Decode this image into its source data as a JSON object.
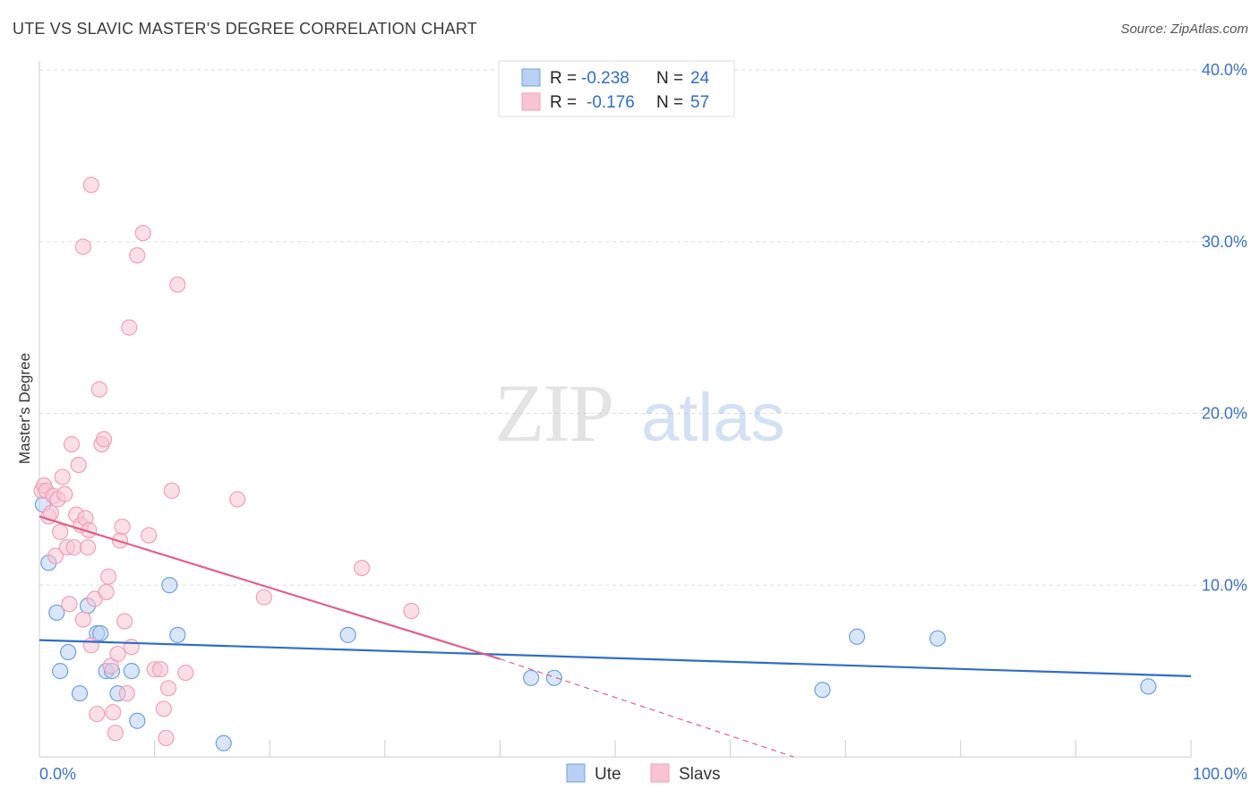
{
  "chart_data": {
    "type": "scatter",
    "title": "UTE VS SLAVIC MASTER'S DEGREE CORRELATION CHART",
    "source": "Source: ZipAtlas.com",
    "xlabel": "",
    "ylabel": "Master's Degree",
    "xlim": [
      0,
      100
    ],
    "ylim": [
      0,
      40
    ],
    "x_tick_labels": [
      "0.0%",
      "100.0%"
    ],
    "y_ticks": [
      10,
      20,
      30,
      40
    ],
    "y_tick_labels": [
      "10.0%",
      "20.0%",
      "30.0%",
      "40.0%"
    ],
    "grid": true,
    "watermark": "ZIPatlas",
    "legend_position": "top-center",
    "series": [
      {
        "name": "Ute",
        "color": "#6fa0e0",
        "fill": "#b8d1f3",
        "line_color": "#2f6ec7",
        "R": "-0.238",
        "N": "24",
        "r_label": "R =",
        "n_label": "N =",
        "trend": {
          "x0": 0,
          "y0": 6.8,
          "x1": 100,
          "y1": 4.7
        },
        "points": [
          [
            0.3,
            14.7
          ],
          [
            0.8,
            11.3
          ],
          [
            1.5,
            8.4
          ],
          [
            1.8,
            5.0
          ],
          [
            2.5,
            6.1
          ],
          [
            3.5,
            3.7
          ],
          [
            4.2,
            8.8
          ],
          [
            5.0,
            7.2
          ],
          [
            5.3,
            7.2
          ],
          [
            5.8,
            5.0
          ],
          [
            6.3,
            5.0
          ],
          [
            6.8,
            3.7
          ],
          [
            8.0,
            5.0
          ],
          [
            8.5,
            2.1
          ],
          [
            11.3,
            10.0
          ],
          [
            12.0,
            7.1
          ],
          [
            16.0,
            0.8
          ],
          [
            26.8,
            7.1
          ],
          [
            42.7,
            4.6
          ],
          [
            44.7,
            4.6
          ],
          [
            68.0,
            3.9
          ],
          [
            71.0,
            7.0
          ],
          [
            78.0,
            6.9
          ],
          [
            96.3,
            4.1
          ]
        ]
      },
      {
        "name": "Slavs",
        "color": "#f0a0b8",
        "fill": "#f8c4d4",
        "line_color": "#e0608c",
        "R": "-0.176",
        "N": "57",
        "r_label": "R =",
        "n_label": "N =",
        "trend": {
          "x0": 0,
          "y0": 14.0,
          "x1": 40,
          "y1": 5.7
        },
        "trend_dashed": {
          "x0": 40,
          "y0": 5.7,
          "x1": 65.5,
          "y1": 0.0
        },
        "points": [
          [
            0.2,
            15.5
          ],
          [
            0.4,
            15.8
          ],
          [
            0.6,
            15.5
          ],
          [
            0.8,
            14.0
          ],
          [
            1.0,
            14.2
          ],
          [
            1.2,
            15.2
          ],
          [
            1.4,
            11.7
          ],
          [
            1.6,
            15.0
          ],
          [
            1.8,
            13.1
          ],
          [
            2.0,
            16.3
          ],
          [
            2.2,
            15.3
          ],
          [
            2.4,
            12.2
          ],
          [
            2.6,
            8.9
          ],
          [
            2.8,
            18.2
          ],
          [
            3.0,
            12.2
          ],
          [
            3.2,
            14.1
          ],
          [
            3.4,
            17.0
          ],
          [
            3.6,
            13.5
          ],
          [
            3.8,
            8.0
          ],
          [
            4.0,
            13.9
          ],
          [
            4.2,
            12.2
          ],
          [
            4.5,
            6.5
          ],
          [
            4.8,
            9.2
          ],
          [
            5.0,
            2.5
          ],
          [
            5.2,
            21.4
          ],
          [
            5.4,
            18.2
          ],
          [
            5.6,
            18.5
          ],
          [
            5.8,
            9.6
          ],
          [
            6.0,
            10.5
          ],
          [
            6.2,
            5.3
          ],
          [
            6.4,
            2.6
          ],
          [
            6.6,
            1.4
          ],
          [
            6.8,
            6.0
          ],
          [
            7.0,
            12.6
          ],
          [
            7.2,
            13.4
          ],
          [
            7.4,
            7.9
          ],
          [
            7.6,
            3.7
          ],
          [
            7.8,
            25.0
          ],
          [
            8.0,
            6.4
          ],
          [
            3.8,
            29.7
          ],
          [
            4.5,
            33.3
          ],
          [
            8.5,
            29.2
          ],
          [
            9.0,
            30.5
          ],
          [
            9.5,
            12.9
          ],
          [
            10.0,
            5.1
          ],
          [
            10.5,
            5.1
          ],
          [
            10.8,
            2.8
          ],
          [
            11.0,
            1.1
          ],
          [
            11.2,
            4.0
          ],
          [
            11.5,
            15.5
          ],
          [
            12.0,
            27.5
          ],
          [
            12.7,
            4.9
          ],
          [
            17.2,
            15.0
          ],
          [
            19.5,
            9.3
          ],
          [
            28.0,
            11.0
          ],
          [
            32.3,
            8.5
          ],
          [
            4.3,
            13.2
          ]
        ]
      }
    ]
  }
}
